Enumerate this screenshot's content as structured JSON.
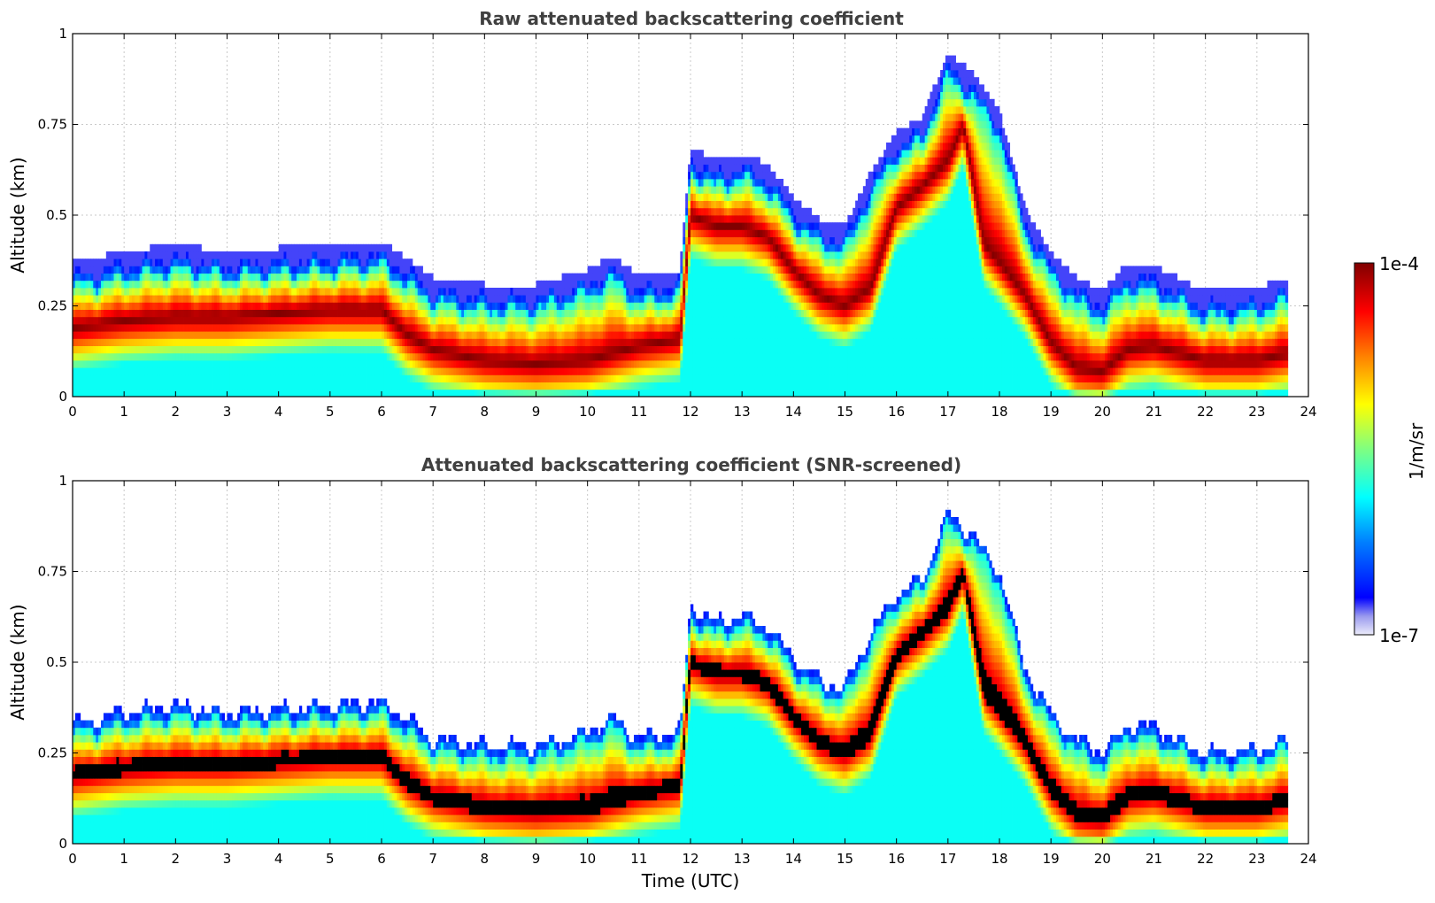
{
  "chart_data": [
    {
      "type": "heatmap",
      "title": "Raw attenuated backscattering coefficient",
      "xlabel": "",
      "ylabel": "Altitude (km)",
      "xlim": [
        0,
        24
      ],
      "ylim": [
        0,
        1
      ],
      "x_ticks": [
        "0",
        "1",
        "2",
        "3",
        "4",
        "5",
        "6",
        "7",
        "8",
        "9",
        "10",
        "11",
        "12",
        "13",
        "14",
        "15",
        "16",
        "17",
        "18",
        "19",
        "20",
        "21",
        "22",
        "23",
        "24"
      ],
      "y_ticks": [
        "0",
        "0.25",
        "0.5",
        "0.75",
        "1"
      ],
      "grid": true,
      "screened": false,
      "layer_top_km": [
        {
          "t": 0,
          "v": 0.3
        },
        {
          "t": 1,
          "v": 0.33
        },
        {
          "t": 2,
          "v": 0.35
        },
        {
          "t": 3,
          "v": 0.33
        },
        {
          "t": 4,
          "v": 0.34
        },
        {
          "t": 5,
          "v": 0.35
        },
        {
          "t": 6,
          "v": 0.36
        },
        {
          "t": 6.5,
          "v": 0.31
        },
        {
          "t": 7,
          "v": 0.26
        },
        {
          "t": 8,
          "v": 0.24
        },
        {
          "t": 9,
          "v": 0.24
        },
        {
          "t": 10,
          "v": 0.28
        },
        {
          "t": 10.5,
          "v": 0.32
        },
        {
          "t": 11,
          "v": 0.26
        },
        {
          "t": 11.8,
          "v": 0.28
        },
        {
          "t": 12,
          "v": 0.62
        },
        {
          "t": 12.5,
          "v": 0.58
        },
        {
          "t": 13,
          "v": 0.6
        },
        {
          "t": 13.5,
          "v": 0.57
        },
        {
          "t": 14,
          "v": 0.48
        },
        {
          "t": 14.5,
          "v": 0.42
        },
        {
          "t": 15,
          "v": 0.4
        },
        {
          "t": 15.5,
          "v": 0.55
        },
        {
          "t": 16,
          "v": 0.66
        },
        {
          "t": 16.5,
          "v": 0.7
        },
        {
          "t": 17,
          "v": 0.88
        },
        {
          "t": 17.5,
          "v": 0.82
        },
        {
          "t": 18,
          "v": 0.72
        },
        {
          "t": 18.5,
          "v": 0.45
        },
        {
          "t": 19,
          "v": 0.33
        },
        {
          "t": 19.5,
          "v": 0.26
        },
        {
          "t": 20,
          "v": 0.22
        },
        {
          "t": 20.5,
          "v": 0.3
        },
        {
          "t": 21,
          "v": 0.29
        },
        {
          "t": 22,
          "v": 0.22
        },
        {
          "t": 23,
          "v": 0.23
        },
        {
          "t": 23.6,
          "v": 0.26
        }
      ],
      "layer_center_km": [
        {
          "t": 0,
          "v": 0.19
        },
        {
          "t": 1,
          "v": 0.21
        },
        {
          "t": 2,
          "v": 0.22
        },
        {
          "t": 3,
          "v": 0.22
        },
        {
          "t": 4,
          "v": 0.23
        },
        {
          "t": 5,
          "v": 0.24
        },
        {
          "t": 6,
          "v": 0.24
        },
        {
          "t": 6.5,
          "v": 0.17
        },
        {
          "t": 7,
          "v": 0.13
        },
        {
          "t": 8,
          "v": 0.1
        },
        {
          "t": 9,
          "v": 0.09
        },
        {
          "t": 10,
          "v": 0.1
        },
        {
          "t": 10.5,
          "v": 0.12
        },
        {
          "t": 11,
          "v": 0.14
        },
        {
          "t": 11.8,
          "v": 0.16
        },
        {
          "t": 12,
          "v": 0.5
        },
        {
          "t": 12.5,
          "v": 0.47
        },
        {
          "t": 13,
          "v": 0.47
        },
        {
          "t": 13.5,
          "v": 0.44
        },
        {
          "t": 14,
          "v": 0.35
        },
        {
          "t": 14.5,
          "v": 0.28
        },
        {
          "t": 15,
          "v": 0.25
        },
        {
          "t": 15.5,
          "v": 0.3
        },
        {
          "t": 16,
          "v": 0.52
        },
        {
          "t": 16.5,
          "v": 0.58
        },
        {
          "t": 17,
          "v": 0.65
        },
        {
          "t": 17.3,
          "v": 0.75
        },
        {
          "t": 17.7,
          "v": 0.42
        },
        {
          "t": 18,
          "v": 0.37
        },
        {
          "t": 18.5,
          "v": 0.28
        },
        {
          "t": 19,
          "v": 0.15
        },
        {
          "t": 19.5,
          "v": 0.08
        },
        {
          "t": 20,
          "v": 0.07
        },
        {
          "t": 20.5,
          "v": 0.13
        },
        {
          "t": 21,
          "v": 0.14
        },
        {
          "t": 22,
          "v": 0.1
        },
        {
          "t": 23,
          "v": 0.1
        },
        {
          "t": 23.6,
          "v": 0.12
        }
      ]
    },
    {
      "type": "heatmap",
      "title": "Attenuated backscattering coefficient (SNR-screened)",
      "xlabel": "Time (UTC)",
      "ylabel": "Altitude (km)",
      "xlim": [
        0,
        24
      ],
      "ylim": [
        0,
        1
      ],
      "x_ticks": [
        "0",
        "1",
        "2",
        "3",
        "4",
        "5",
        "6",
        "7",
        "8",
        "9",
        "10",
        "11",
        "12",
        "13",
        "14",
        "15",
        "16",
        "17",
        "18",
        "19",
        "20",
        "21",
        "22",
        "23",
        "24"
      ],
      "y_ticks": [
        "0",
        "0.25",
        "0.5",
        "0.75",
        "1"
      ],
      "grid": true,
      "screened": true
    }
  ],
  "colorbar": {
    "label": "1/m/sr",
    "max_label": "1e-4",
    "min_label": "1e-7",
    "colormap": "jet",
    "min_color": "#e8e8f8",
    "max_color": "#800000",
    "saturated_color": "#000000"
  }
}
